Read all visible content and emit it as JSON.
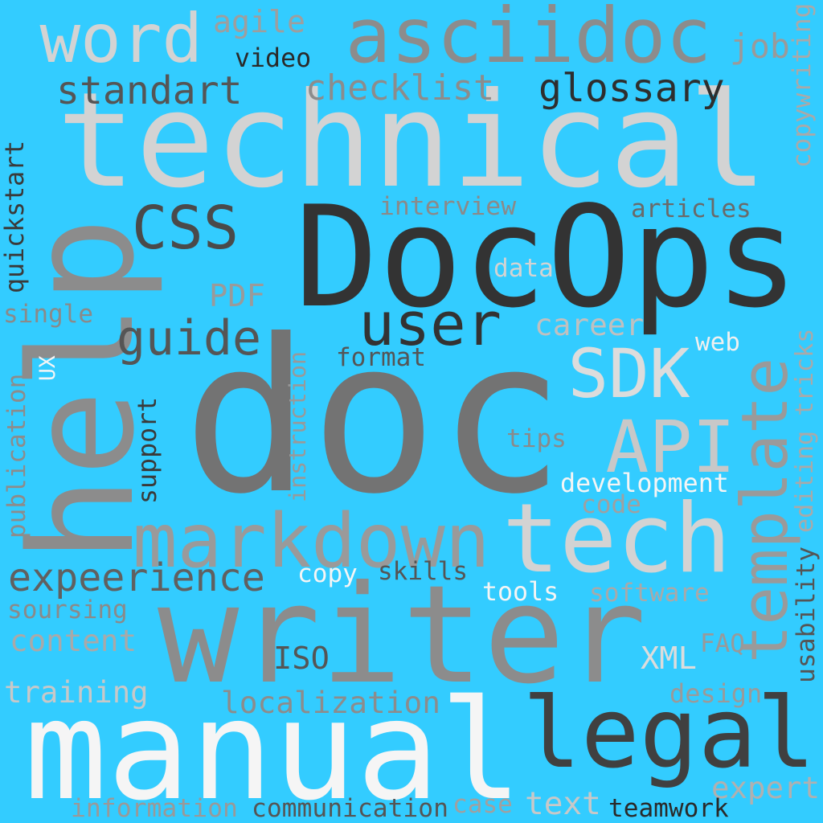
{
  "background": "#33ccff",
  "words": [
    {
      "text": "technical",
      "color": "#d3d3d3"
    },
    {
      "text": "DocOps",
      "color": "#333333"
    },
    {
      "text": "doc",
      "color": "#737373"
    },
    {
      "text": "help",
      "color": "#8c8c8c"
    },
    {
      "text": "writer",
      "color": "#8c8c8c"
    },
    {
      "text": "manual",
      "color": "#f5f5f5"
    },
    {
      "text": "legal",
      "color": "#404040"
    },
    {
      "text": "asciidoc",
      "color": "#8c8c8c"
    },
    {
      "text": "word",
      "color": "#d3d3d3"
    },
    {
      "text": "tech",
      "color": "#d3d3d3"
    },
    {
      "text": "template",
      "color": "#9a9a9a"
    },
    {
      "text": "markdown",
      "color": "#9a9a9a"
    },
    {
      "text": "CSS",
      "color": "#4a4a4a"
    },
    {
      "text": "user",
      "color": "#333333"
    },
    {
      "text": "SDK",
      "color": "#dcdcdc"
    },
    {
      "text": "API",
      "color": "#c8c8c8"
    },
    {
      "text": "guide",
      "color": "#555555"
    },
    {
      "text": "glossary",
      "color": "#2e2e2e"
    },
    {
      "text": "standart",
      "color": "#555555"
    },
    {
      "text": "expeerience",
      "color": "#606060"
    },
    {
      "text": "checklist",
      "color": "#8c8c8c"
    },
    {
      "text": "agile",
      "color": "#9e9e9e"
    },
    {
      "text": "video",
      "color": "#2a2a2a"
    },
    {
      "text": "job",
      "color": "#9a9a9a"
    },
    {
      "text": "copywriting",
      "color": "#a9a9a9"
    },
    {
      "text": "quickstart",
      "color": "#3a3a3a"
    },
    {
      "text": "interview",
      "color": "#8a8a8a"
    },
    {
      "text": "articles",
      "color": "#6a6a6a"
    },
    {
      "text": "data",
      "color": "#d3d3d3"
    },
    {
      "text": "PDF",
      "color": "#9a9a9a"
    },
    {
      "text": "single",
      "color": "#8a8a8a"
    },
    {
      "text": "career",
      "color": "#c0c0c0"
    },
    {
      "text": "web",
      "color": "#f0f0f0"
    },
    {
      "text": "format",
      "color": "#555555"
    },
    {
      "text": "UX",
      "color": "#f5f5f5"
    },
    {
      "text": "instruction",
      "color": "#999999"
    },
    {
      "text": "support",
      "color": "#3a3a3a"
    },
    {
      "text": "publication",
      "color": "#8c8c8c"
    },
    {
      "text": "editing tricks",
      "color": "#a9a9a9"
    },
    {
      "text": "tips",
      "color": "#8a8a8a"
    },
    {
      "text": "development",
      "color": "#f5f5f5"
    },
    {
      "text": "code",
      "color": "#a0a0a0"
    },
    {
      "text": "copy",
      "color": "#f5f5f5"
    },
    {
      "text": "skills",
      "color": "#555555"
    },
    {
      "text": "tools",
      "color": "#f5f5f5"
    },
    {
      "text": "software",
      "color": "#a9a9a9"
    },
    {
      "text": "usability",
      "color": "#555555"
    },
    {
      "text": "soursing",
      "color": "#8a8a8a"
    },
    {
      "text": "content",
      "color": "#a9a9a9"
    },
    {
      "text": "ISO",
      "color": "#555555"
    },
    {
      "text": "XML",
      "color": "#dcdcdc"
    },
    {
      "text": "FAQ",
      "color": "#999999"
    },
    {
      "text": "training",
      "color": "#c8c8c8"
    },
    {
      "text": "localization",
      "color": "#8c8c8c"
    },
    {
      "text": "design",
      "color": "#9a9a9a"
    },
    {
      "text": "expert",
      "color": "#b0b0b0"
    },
    {
      "text": "information",
      "color": "#999999"
    },
    {
      "text": "communication",
      "color": "#555555"
    },
    {
      "text": "case",
      "color": "#a0a0a0"
    },
    {
      "text": "text",
      "color": "#c8c8c8"
    },
    {
      "text": "teamwork",
      "color": "#2a2a2a"
    }
  ]
}
